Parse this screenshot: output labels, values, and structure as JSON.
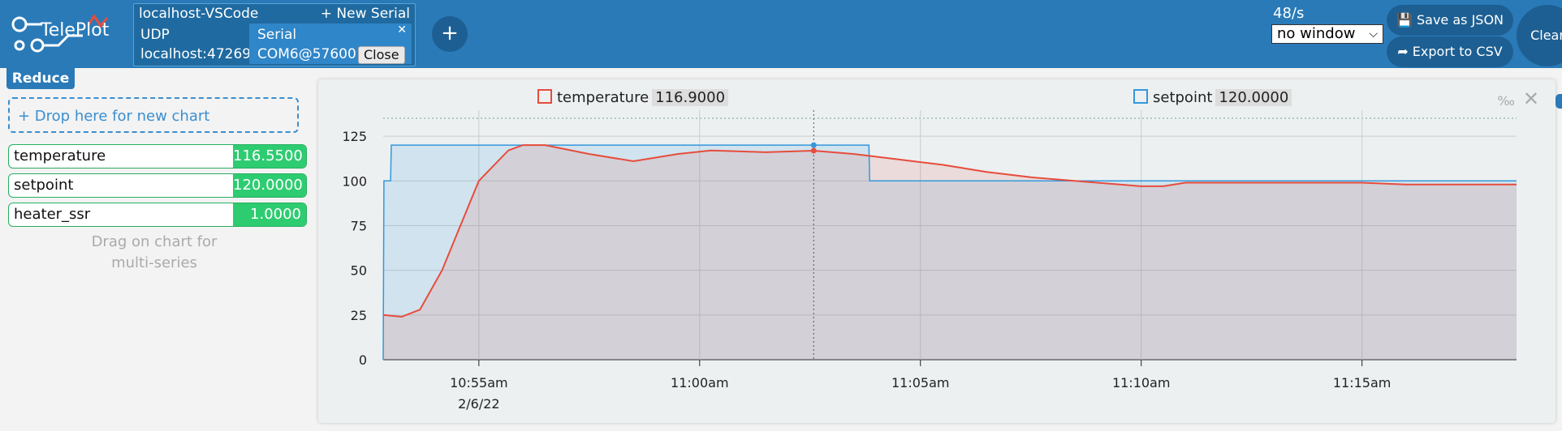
{
  "app": {
    "name": "TelePlot"
  },
  "connection": {
    "title": "localhost-VSCode",
    "new_serial_label": "+ New Serial",
    "udp_label": "UDP",
    "udp_address": "localhost:47269",
    "serial_label": "Serial",
    "serial_port": "COM6@57600",
    "close_label": "Close",
    "close_x": "✕"
  },
  "add_connection_label": "+",
  "toolbar": {
    "rate": "48/s",
    "window_value": "no window",
    "save_json_label": "💾 Save as JSON",
    "export_csv_label": "➦ Export to CSV",
    "clear_label": "Clear"
  },
  "sidebar": {
    "reduce_label": "Reduce",
    "drop_label": "+ Drop here for new chart",
    "variables": [
      {
        "name": "temperature",
        "value": "116.5500"
      },
      {
        "name": "setpoint",
        "value": "120.0000"
      },
      {
        "name": "heater_ssr",
        "value": "1.0000"
      }
    ],
    "hint_line1": "Drag on chart for",
    "hint_line2": "multi-series"
  },
  "chart_card": {
    "legend": [
      {
        "name": "temperature",
        "value": "116.9000",
        "color": "#e74c3c"
      },
      {
        "name": "setpoint",
        "value": "120.0000",
        "color": "#3498db"
      }
    ],
    "ctrl_symbol": "‰",
    "close_symbol": "✕"
  },
  "chart_data": {
    "type": "line",
    "x_ticks": [
      "10:55am",
      "11:00am",
      "11:05am",
      "11:10am",
      "11:15am"
    ],
    "x_date_label": "2/6/22",
    "x_range": [
      "10:52:50",
      "11:18:30"
    ],
    "ylim": [
      0,
      135
    ],
    "y_ticks": [
      0,
      25,
      50,
      75,
      100,
      125
    ],
    "grid": true,
    "cursor_time": "11:02:35",
    "series": [
      {
        "name": "temperature",
        "color": "#e74c3c",
        "points": [
          [
            "10:52:50",
            25
          ],
          [
            "10:53:15",
            24
          ],
          [
            "10:53:40",
            28
          ],
          [
            "10:54:10",
            50
          ],
          [
            "10:55:00",
            100
          ],
          [
            "10:55:40",
            117
          ],
          [
            "10:56:00",
            120
          ],
          [
            "10:56:30",
            120
          ],
          [
            "10:57:30",
            115
          ],
          [
            "10:58:30",
            111
          ],
          [
            "10:59:30",
            115
          ],
          [
            "11:00:15",
            117
          ],
          [
            "11:01:30",
            116
          ],
          [
            "11:02:35",
            116.9
          ],
          [
            "11:03:30",
            115
          ],
          [
            "11:04:30",
            112
          ],
          [
            "11:05:30",
            109
          ],
          [
            "11:06:30",
            105
          ],
          [
            "11:07:30",
            102
          ],
          [
            "11:09:00",
            99
          ],
          [
            "11:10:00",
            97
          ],
          [
            "11:10:30",
            97
          ],
          [
            "11:11:00",
            99
          ],
          [
            "11:13:00",
            99
          ],
          [
            "11:15:00",
            99
          ],
          [
            "11:16:00",
            98
          ],
          [
            "11:18:30",
            98
          ]
        ]
      },
      {
        "name": "setpoint",
        "color": "#3498db",
        "points": [
          [
            "10:52:50",
            0
          ],
          [
            "10:52:51",
            100
          ],
          [
            "10:53:00",
            100
          ],
          [
            "10:53:01",
            120
          ],
          [
            "11:03:50",
            120
          ],
          [
            "11:03:51",
            100
          ],
          [
            "11:18:30",
            100
          ]
        ]
      }
    ]
  }
}
